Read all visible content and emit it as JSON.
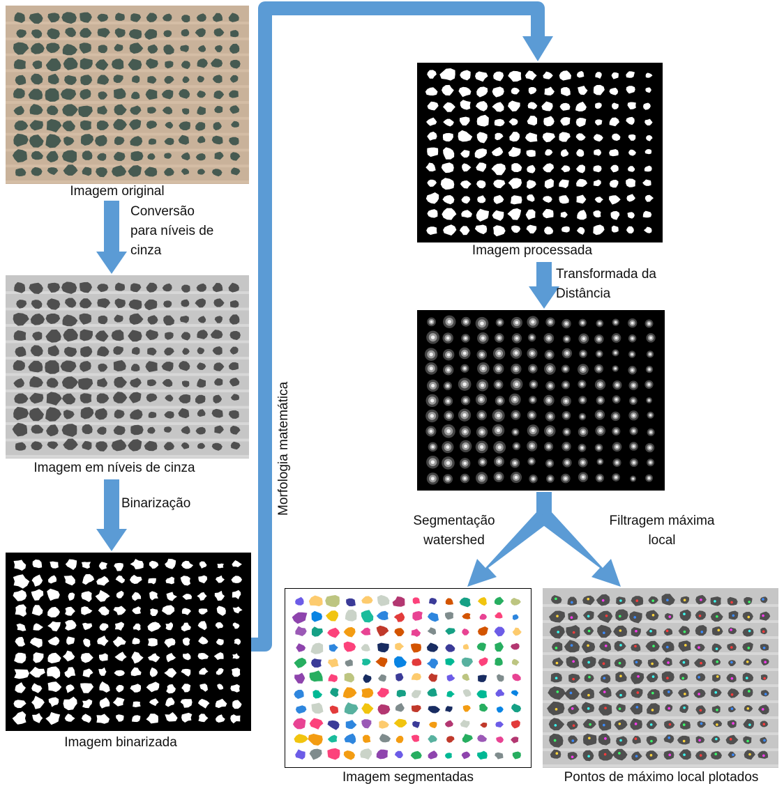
{
  "colors": {
    "arrow": "#5b9bd5",
    "original_bg": "#c9b29a",
    "original_tree": "#2f4a44",
    "gray_bg": "#c6c6c6",
    "gray_tree": "#3a3a3a",
    "binary_bg": "#000000",
    "binary_blob": "#ffffff",
    "segmented_bg": "#ffffff"
  },
  "panels": {
    "original": {
      "caption": "Imagem original",
      "cols": 14,
      "rows": 11
    },
    "gray": {
      "caption": "Imagem em níveis de cinza",
      "cols": 14,
      "rows": 11
    },
    "binary": {
      "caption": "Imagem binarizada",
      "cols": 14,
      "rows": 11
    },
    "processed": {
      "caption": "Imagem processada",
      "cols": 14,
      "rows": 11
    },
    "distance": {
      "caption": "",
      "cols": 14,
      "rows": 11
    },
    "segmented": {
      "caption": "Imagem segmentadas",
      "cols": 14,
      "rows": 11
    },
    "maxima": {
      "caption": "Pontos de máximo local plotados",
      "cols": 14,
      "rows": 11
    }
  },
  "steps": {
    "gray_conversion": [
      "Conversão",
      "para níveis de",
      "cinza"
    ],
    "binarization": [
      "Binarização"
    ],
    "morphology": "Morfologia matemática",
    "distance_transform": [
      "Transformada da",
      "Distância"
    ],
    "watershed": [
      "Segmentação",
      "watershed"
    ],
    "max_filter": [
      "Filtragem máxima",
      "local"
    ]
  },
  "segment_palette": [
    "#e23b3b",
    "#8e44ad",
    "#2e86de",
    "#27ae60",
    "#f39c12",
    "#16a085",
    "#d35400",
    "#c0392b",
    "#7f8c8d",
    "#f1c40f",
    "#1abc9c",
    "#9b59b6",
    "#e84393",
    "#00b894",
    "#6c5ce7",
    "#fdcb6e",
    "#0984e3",
    "#b33771",
    "#58b19f",
    "#182c61",
    "#fc427b",
    "#bdc581",
    "#3b3b98",
    "#cad3c8"
  ],
  "maxima_dot_palette": [
    "#ff3b3b",
    "#3bff6a",
    "#3b8bff",
    "#ffd43b",
    "#ff3bf1",
    "#3bfff3"
  ]
}
